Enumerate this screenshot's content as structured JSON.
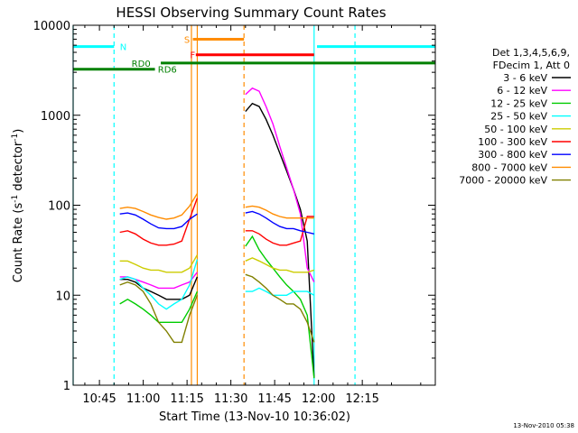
{
  "chart_data": {
    "type": "line",
    "title": "HESSI Observing Summary Count Rates",
    "xlabel": "Start Time (13-Nov-10 10:36:02)",
    "ylabel_main": "Count Rate (s",
    "ylabel_sup1": "-1",
    "ylabel_mid": " detector",
    "ylabel_sup2": "-1",
    "ylabel_end": ")",
    "yscale": "log",
    "ylim": [
      1,
      10000
    ],
    "xlim_min": [
      36,
      160
    ],
    "x_ticks": [
      {
        "min": 45,
        "label": "10:45"
      },
      {
        "min": 60,
        "label": "11:00"
      },
      {
        "min": 75,
        "label": "11:15"
      },
      {
        "min": 90,
        "label": "11:30"
      },
      {
        "min": 105,
        "label": "11:45"
      },
      {
        "min": 120,
        "label": "12:00"
      },
      {
        "min": 135,
        "label": "12:15"
      }
    ],
    "y_ticks": [
      {
        "value": 1,
        "label": "1"
      },
      {
        "value": 10,
        "label": "10"
      },
      {
        "value": 100,
        "label": "100"
      },
      {
        "value": 1000,
        "label": "1000"
      },
      {
        "value": 10000,
        "label": "10000"
      }
    ],
    "legend": {
      "placement": "right",
      "header1": "Det 1,3,4,5,6,9,",
      "header2": "FDecim 1, Att 0"
    },
    "series": [
      {
        "name": "3 - 6 keV",
        "color": "#000000",
        "seg1": [
          15,
          15,
          14,
          12,
          11,
          10,
          9,
          9,
          9,
          10,
          16
        ],
        "seg2": [
          1100,
          1350,
          1250,
          900,
          600,
          380,
          240,
          150,
          90,
          40,
          1.2
        ]
      },
      {
        "name": "6 - 12 keV",
        "color": "#ff00ff",
        "seg1": [
          16,
          16,
          15,
          14,
          13,
          12,
          12,
          12,
          13,
          14,
          18
        ],
        "seg2": [
          1700,
          2000,
          1850,
          1250,
          800,
          450,
          260,
          150,
          80,
          20,
          14
        ]
      },
      {
        "name": "12 - 25 keV",
        "color": "#00cc00",
        "seg1": [
          8,
          9,
          8,
          7,
          6,
          5,
          5,
          5,
          5,
          7,
          11
        ],
        "seg2": [
          35,
          45,
          32,
          25,
          20,
          16,
          13,
          11,
          9,
          6,
          1.2
        ]
      },
      {
        "name": "25 - 50 keV",
        "color": "#00ffff",
        "seg1": [
          15,
          16,
          15,
          12,
          10,
          8,
          7,
          8,
          9,
          13,
          25
        ],
        "seg2": [
          11,
          11,
          12,
          11,
          10,
          10,
          10,
          11,
          11,
          11,
          10
        ]
      },
      {
        "name": "50 - 100 keV",
        "color": "#cccc00",
        "seg1": [
          24,
          24,
          22,
          20,
          19,
          19,
          18,
          18,
          18,
          20,
          28
        ],
        "seg2": [
          24,
          26,
          24,
          22,
          20,
          19,
          19,
          18,
          18,
          18,
          19
        ]
      },
      {
        "name": "100 - 300 keV",
        "color": "#ff0000",
        "seg1": [
          50,
          52,
          48,
          42,
          38,
          36,
          36,
          37,
          40,
          70,
          120
        ],
        "seg2": [
          52,
          52,
          48,
          42,
          38,
          36,
          36,
          38,
          40,
          75,
          75
        ]
      },
      {
        "name": "300 - 800 keV",
        "color": "#0000ff",
        "seg1": [
          80,
          82,
          78,
          70,
          62,
          56,
          55,
          55,
          58,
          70,
          80
        ],
        "seg2": [
          82,
          85,
          80,
          72,
          64,
          58,
          55,
          55,
          52,
          50,
          48
        ]
      },
      {
        "name": "800 - 7000 keV",
        "color": "#ff8c00",
        "seg1": [
          92,
          95,
          92,
          85,
          78,
          73,
          70,
          72,
          78,
          98,
          135
        ],
        "seg2": [
          95,
          98,
          95,
          88,
          80,
          75,
          72,
          72,
          72,
          72,
          72
        ]
      },
      {
        "name": "7000 - 20000 keV",
        "color": "#808000",
        "seg1": [
          13,
          14,
          13,
          11,
          8,
          5,
          4,
          3,
          3,
          6,
          10
        ],
        "seg2": [
          17,
          16,
          14,
          12,
          10,
          9,
          8,
          8,
          7,
          5,
          3
        ]
      }
    ],
    "seg1_range_min": [
      52,
      78.5
    ],
    "seg2_range_min": [
      95,
      118.5
    ],
    "flags": [
      {
        "name": "N",
        "color": "#00ffff",
        "y": 5800,
        "from": 36,
        "to": 50,
        "label_at": 52
      },
      {
        "name": "N",
        "color": "#00ffff",
        "y": 5800,
        "from": 119.5,
        "to": 160,
        "label_at": null
      },
      {
        "name": "S",
        "color": "#ff8c00",
        "y": 7000,
        "from": 77,
        "to": 94.5,
        "label_at": 74
      },
      {
        "name": "F",
        "color": "#ff0000",
        "y": 4700,
        "from": 78,
        "to": 118.5,
        "label_at": 76
      },
      {
        "name": "RD0",
        "color": "#008000",
        "y": 3800,
        "from": 66,
        "to": 160,
        "label_at": 56
      },
      {
        "name": "RD6",
        "color": "#008000",
        "y": 3250,
        "from": 36,
        "to": 64,
        "label_at": 65
      }
    ],
    "vlines": [
      {
        "min": 36,
        "color": "#00ffff",
        "dash": false
      },
      {
        "min": 50,
        "color": "#00ffff",
        "dash": true
      },
      {
        "min": 76.5,
        "color": "#ff8c00",
        "dash": false
      },
      {
        "min": 78.5,
        "color": "#ff8c00",
        "dash": false
      },
      {
        "min": 94.5,
        "color": "#ff8c00",
        "dash": true
      },
      {
        "min": 118.5,
        "color": "#00ffff",
        "dash": false
      },
      {
        "min": 132.5,
        "color": "#00ffff",
        "dash": true
      }
    ]
  },
  "footer": {
    "timestamp": "13-Nov-2010 05:38"
  }
}
